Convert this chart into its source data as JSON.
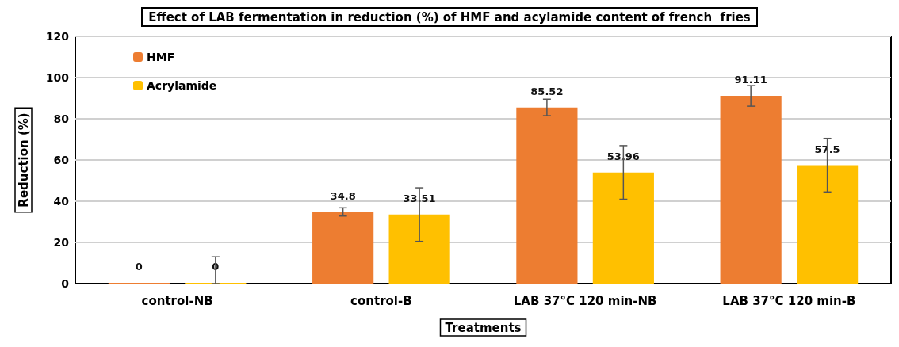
{
  "chart_data": {
    "type": "bar",
    "title": "Effect of LAB fermentation in reduction (%) of HMF and acylamide content of french  fries",
    "xlabel": "Treatments",
    "ylabel": "Reduction (%)",
    "categories": [
      "control-NB",
      "control-B",
      "LAB 37°C 120 min-NB",
      "LAB 37°C 120 min-B"
    ],
    "series": [
      {
        "name": "HMF",
        "color": "#ed7d31",
        "values": [
          0,
          34.8,
          85.52,
          91.11
        ],
        "errors": [
          null,
          2,
          4,
          5
        ]
      },
      {
        "name": "Acrylamide",
        "color": "#ffc000",
        "values": [
          0,
          33.51,
          53.96,
          57.5
        ],
        "errors": [
          [
            0,
            13
          ],
          13,
          13,
          13
        ]
      }
    ],
    "ylim": [
      0,
      120
    ],
    "yticks": [
      0,
      20,
      40,
      60,
      80,
      100,
      120
    ],
    "grid": "y",
    "legend": "top left",
    "data_labels": true
  }
}
